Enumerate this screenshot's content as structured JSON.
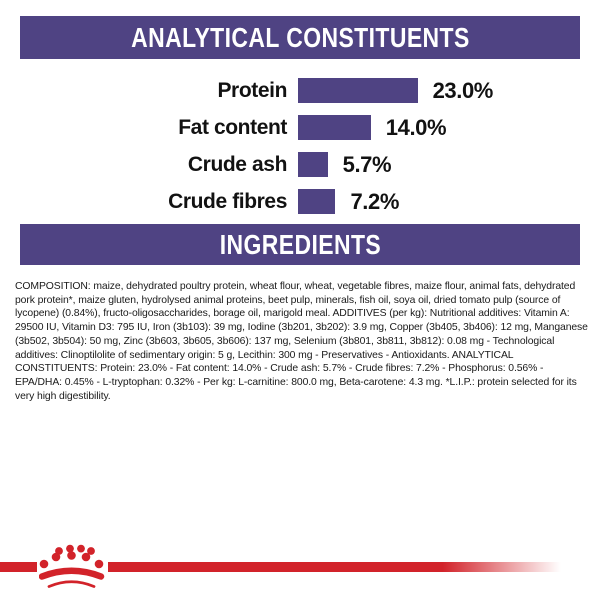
{
  "sections": {
    "analytical": {
      "title": "ANALYTICAL CONSTITUENTS"
    },
    "ingredients": {
      "title": "INGREDIENTS",
      "text": "COMPOSITION: maize, dehydrated poultry protein, wheat flour, wheat, vegetable fibres, maize flour, animal fats, dehydrated pork protein*, maize gluten, hydrolysed animal proteins, beet pulp, minerals, fish oil, soya oil, dried tomato pulp (source of lycopene) (0.84%), fructo-oligosaccharides, borage oil, marigold meal. ADDITIVES (per kg): Nutritional additives: Vitamin A: 29500 IU, Vitamin D3: 795 IU, Iron (3b103): 39 mg, Iodine (3b201, 3b202): 3.9 mg, Copper (3b405, 3b406): 12 mg, Manganese (3b502, 3b504): 50 mg, Zinc (3b603, 3b605, 3b606): 137 mg, Selenium (3b801, 3b811, 3b812): 0.08 mg - Technological additives: Clinoptilolite of sedimentary origin: 5 g, Lecithin: 300 mg - Preservatives - Antioxidants. ANALYTICAL CONSTITUENTS: Protein: 23.0% - Fat content: 14.0% - Crude ash: 5.7% - Crude fibres: 7.2% - Phosphorus: 0.56% - EPA/DHA: 0.45% - L-tryptophan: 0.32% - Per kg: L-carnitine: 800.0 mg, Beta-carotene: 4.3 mg. *L.I.P.: protein selected for its very high digestibility."
    }
  },
  "chart_data": {
    "type": "bar",
    "orientation": "horizontal",
    "title": "ANALYTICAL CONSTITUENTS",
    "categories": [
      "Protein",
      "Fat content",
      "Crude ash",
      "Crude fibres"
    ],
    "values": [
      23.0,
      14.0,
      5.7,
      7.2
    ],
    "value_labels": [
      "23.0%",
      "14.0%",
      "5.7%",
      "7.2%"
    ],
    "unit": "%",
    "bar_color": "#4f4383",
    "axis": "none",
    "grid": false,
    "value_label_position": "right-of-bar",
    "category_label_position": "left-of-bar"
  },
  "branding": {
    "logo_icon": "royal-canin-crown-icon",
    "red": "#d2232a",
    "purple": "#4f4383"
  }
}
